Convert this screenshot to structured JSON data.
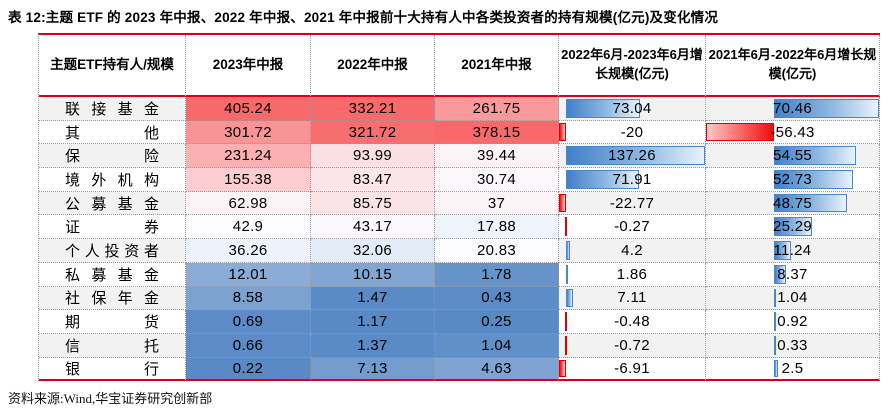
{
  "title": "表 12:主题 ETF 的 2023 年中报、2022 年中报、2021 年中报前十大持有人中各类投资者的持有规模(亿元)及变化情况",
  "source_note": "资料来源:Wind,华宝证券研究创新部",
  "table": {
    "header": {
      "holder_col": "主题ETF持有人/规模",
      "year_cols": [
        "2023年中报",
        "2022年中报",
        "2021年中报"
      ],
      "growth_cols": [
        "2022年6月-2023年6月增长规模(亿元)",
        "2021年6月-2022年6月增长规模(亿元)"
      ]
    },
    "rows": [
      {
        "label": "联接基金",
        "values": [
          "405.24",
          "332.21",
          "261.75"
        ],
        "growth": [
          "73.04",
          "70.46"
        ]
      },
      {
        "label": "其他",
        "values": [
          "301.72",
          "321.72",
          "378.15"
        ],
        "growth": [
          "-20",
          "-56.43"
        ]
      },
      {
        "label": "保险",
        "values": [
          "231.24",
          "93.99",
          "39.44"
        ],
        "growth": [
          "137.26",
          "54.55"
        ]
      },
      {
        "label": "境外机构",
        "values": [
          "155.38",
          "83.47",
          "30.74"
        ],
        "growth": [
          "71.91",
          "52.73"
        ]
      },
      {
        "label": "公募基金",
        "values": [
          "62.98",
          "85.75",
          "37"
        ],
        "growth": [
          "-22.77",
          "48.75"
        ]
      },
      {
        "label": "证券",
        "values": [
          "42.9",
          "43.17",
          "17.88"
        ],
        "growth": [
          "-0.27",
          "25.29"
        ]
      },
      {
        "label": "个人投资者",
        "values": [
          "36.26",
          "32.06",
          "20.83"
        ],
        "growth": [
          "4.2",
          "11.24"
        ]
      },
      {
        "label": "私募基金",
        "values": [
          "12.01",
          "10.15",
          "1.78"
        ],
        "growth": [
          "1.86",
          "8.37"
        ]
      },
      {
        "label": "社保年金",
        "values": [
          "8.58",
          "1.47",
          "0.43"
        ],
        "growth": [
          "7.11",
          "1.04"
        ]
      },
      {
        "label": "期货",
        "values": [
          "0.69",
          "1.17",
          "0.25"
        ],
        "growth": [
          "-0.48",
          "0.92"
        ]
      },
      {
        "label": "信托",
        "values": [
          "0.66",
          "1.37",
          "1.04"
        ],
        "growth": [
          "-0.72",
          "0.33"
        ]
      },
      {
        "label": "银行",
        "values": [
          "0.22",
          "7.13",
          "4.63"
        ],
        "growth": [
          "-6.91",
          "2.5"
        ]
      }
    ]
  },
  "colors": {
    "rule_red": "#D9001B",
    "scale_max_red": "#F8696B",
    "scale_mid_white": "#FCFCFF",
    "scale_min_blue": "#5A8AC6",
    "bar_positive_blue": "#4180C8",
    "bar_positive_fade": "#E9F2FB",
    "bar_positive_border": "#4A86CB",
    "bar_negative_red": "#F20D0D",
    "bar_negative_fade": "#FFC9C9",
    "bar_negative_border": "#E00000",
    "row_alt_gray": "#F2F2F2"
  }
}
